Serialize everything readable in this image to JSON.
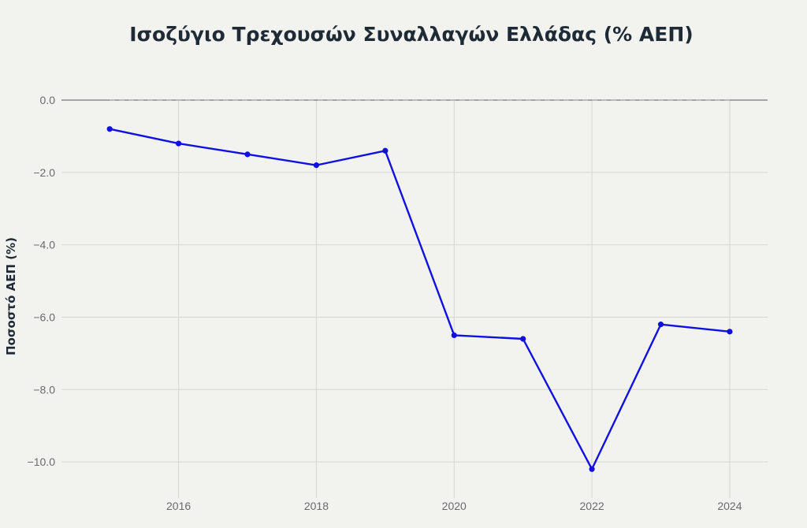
{
  "chart_data": {
    "type": "line",
    "title": "Ισοζύγιο Τρεχουσών Συναλλαγών Ελλάδας (% ΑΕΠ)",
    "ylabel": "Ποσοστό ΑΕΠ (%)",
    "xlabel": "",
    "x": [
      2015,
      2016,
      2017,
      2018,
      2019,
      2020,
      2021,
      2022,
      2023,
      2024
    ],
    "series": [
      {
        "values": [
          -0.8,
          -1.2,
          -1.5,
          -1.8,
          -1.4,
          -6.5,
          -6.6,
          -10.2,
          -6.2,
          -6.4
        ]
      }
    ],
    "xticks": [
      2016,
      2018,
      2020,
      2022,
      2024
    ],
    "xtick_labels": [
      "2016",
      "2018",
      "2020",
      "2022",
      "2024"
    ],
    "yticks": [
      0,
      -2,
      -4,
      -6,
      -8,
      -10
    ],
    "ytick_labels": [
      "0.0",
      "−2.0",
      "−4.0",
      "−6.0",
      "−8.0",
      "−10.0"
    ],
    "xlim": [
      2014.3,
      2024.55
    ],
    "ylim": [
      -11.0,
      0.0
    ],
    "grid": true,
    "reference_line": {
      "y": 0,
      "style": "dashed"
    },
    "colors": {
      "line": "#1010e0",
      "marker": "#1010e0",
      "title": "#1e2a36",
      "background": "#f2f2ee"
    }
  }
}
